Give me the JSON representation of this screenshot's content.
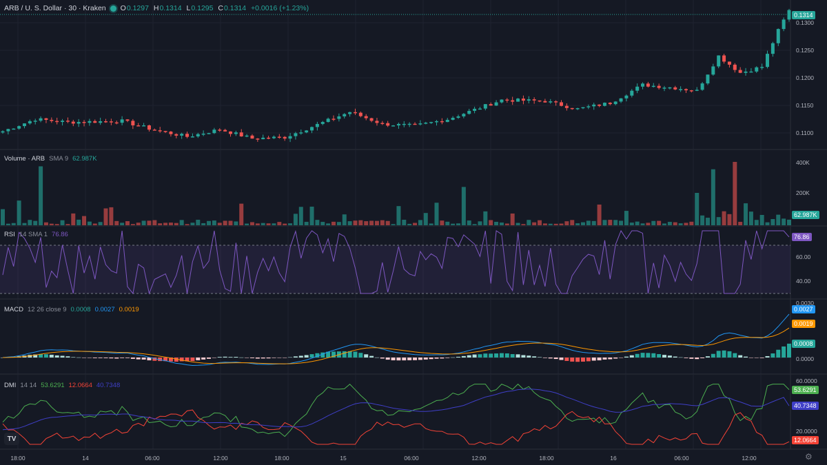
{
  "header": {
    "symbol_title": "ARB / U. S. Dollar · 30 · Kraken",
    "ohlc": [
      {
        "key": "O",
        "value": "0.1297"
      },
      {
        "key": "H",
        "value": "0.1314"
      },
      {
        "key": "L",
        "value": "0.1295"
      },
      {
        "key": "C",
        "value": "0.1314"
      }
    ],
    "change": "+0.0016 (+1.23%)"
  },
  "price_axis": {
    "ticks": [
      "0.1300",
      "0.1250",
      "0.1200",
      "0.1150",
      "0.1100"
    ],
    "last_price": "0.1314"
  },
  "volume": {
    "label": "Volume · ARB",
    "params": "SMA 9",
    "value": "62.987K",
    "ticks": [
      "400K",
      "200K"
    ],
    "badge": "62.987K"
  },
  "rsi": {
    "label": "RSI",
    "params": "14 SMA 1",
    "value": "76.86",
    "ticks": [
      "60.00",
      "40.00"
    ],
    "badge": "76.86"
  },
  "macd": {
    "label": "MACD",
    "params": "12 26 close 9",
    "hist_value": "0.0008",
    "macd_value": "0.0027",
    "signal_value": "0.0019",
    "top_tick": "0.0030",
    "zero_tick": "0.0000"
  },
  "dmi": {
    "label": "DMI",
    "params": "14 14",
    "plus_value": "53.6291",
    "minus_value": "12.0664",
    "adx_value": "40.7348",
    "top_tick": "60.0000",
    "tick_20": "20.0000"
  },
  "time_axis": {
    "labels": [
      "18:00",
      "14",
      "06:00",
      "12:00",
      "18:00",
      "15",
      "06:00",
      "12:00",
      "18:00",
      "16",
      "06:00",
      "12:00"
    ]
  },
  "colors": {
    "background": "#151924",
    "up": "#26a69a",
    "down": "#ef5350",
    "rsi": "#7e57c2",
    "macd": "#2196f3",
    "signal": "#ff9800",
    "dmi_plus": "#4caf50",
    "dmi_minus": "#f44336",
    "adx": "#3f3fc8"
  },
  "icons": {
    "logo": "tradingview-logo-icon",
    "settings": "gear-icon"
  },
  "chart_data": {
    "type": "candlestick",
    "interval": "30",
    "ohlc_keypoints": [
      {
        "bar": 0,
        "close": 0.1113
      },
      {
        "bar": 6,
        "close": 0.1133
      },
      {
        "bar": 12,
        "close": 0.1128
      },
      {
        "bar": 22,
        "close": 0.113
      },
      {
        "bar": 28,
        "close": 0.1115
      },
      {
        "bar": 34,
        "close": 0.1104
      },
      {
        "bar": 40,
        "close": 0.1116
      },
      {
        "bar": 46,
        "close": 0.1101
      },
      {
        "bar": 52,
        "close": 0.1103
      },
      {
        "bar": 58,
        "close": 0.1124
      },
      {
        "bar": 64,
        "close": 0.1145
      },
      {
        "bar": 70,
        "close": 0.1125
      },
      {
        "bar": 76,
        "close": 0.1122
      },
      {
        "bar": 82,
        "close": 0.1133
      },
      {
        "bar": 88,
        "close": 0.1152
      },
      {
        "bar": 92,
        "close": 0.1165
      },
      {
        "bar": 100,
        "close": 0.1163
      },
      {
        "bar": 106,
        "close": 0.115
      },
      {
        "bar": 112,
        "close": 0.116
      },
      {
        "bar": 118,
        "close": 0.119
      },
      {
        "bar": 124,
        "close": 0.1185
      },
      {
        "bar": 128,
        "close": 0.118
      },
      {
        "bar": 132,
        "close": 0.1238
      },
      {
        "bar": 136,
        "close": 0.121
      },
      {
        "bar": 140,
        "close": 0.122
      },
      {
        "bar": 143,
        "close": 0.128
      },
      {
        "bar": 145,
        "close": 0.1314
      }
    ],
    "volume_spikes": [
      {
        "bar": 7,
        "value": 400000
      },
      {
        "bar": 85,
        "value": 260000
      },
      {
        "bar": 131,
        "value": 380000
      },
      {
        "bar": 135,
        "value": 430000
      }
    ],
    "rsi_last": 76.86,
    "macd_last": {
      "macd": 0.0027,
      "signal": 0.0019,
      "histogram": 0.0008
    },
    "dmi_last": {
      "plus_di": 53.6291,
      "minus_di": 12.0664,
      "adx": 40.7348
    },
    "price_range": [
      0.1085,
      0.1325
    ]
  }
}
